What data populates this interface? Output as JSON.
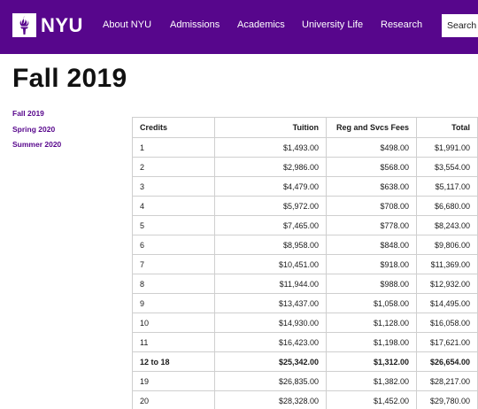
{
  "header": {
    "logo_text": "NYU",
    "nav": [
      "About NYU",
      "Admissions",
      "Academics",
      "University Life",
      "Research"
    ],
    "search_label": "Search",
    "brand_color": "#57068c"
  },
  "page_title": "Fall 2019",
  "side_nav": [
    "Fall 2019",
    "Spring 2020",
    "Summer 2020"
  ],
  "table": {
    "headers": [
      "Credits",
      "Tuition",
      "Reg and Svcs Fees",
      "Total"
    ],
    "rows": [
      [
        "1",
        "$1,493.00",
        "$498.00",
        "$1,991.00"
      ],
      [
        "2",
        "$2,986.00",
        "$568.00",
        "$3,554.00"
      ],
      [
        "3",
        "$4,479.00",
        "$638.00",
        "$5,117.00"
      ],
      [
        "4",
        "$5,972.00",
        "$708.00",
        "$6,680.00"
      ],
      [
        "5",
        "$7,465.00",
        "$778.00",
        "$8,243.00"
      ],
      [
        "6",
        "$8,958.00",
        "$848.00",
        "$9,806.00"
      ],
      [
        "7",
        "$10,451.00",
        "$918.00",
        "$11,369.00"
      ],
      [
        "8",
        "$11,944.00",
        "$988.00",
        "$12,932.00"
      ],
      [
        "9",
        "$13,437.00",
        "$1,058.00",
        "$14,495.00"
      ],
      [
        "10",
        "$14,930.00",
        "$1,128.00",
        "$16,058.00"
      ],
      [
        "11",
        "$16,423.00",
        "$1,198.00",
        "$17,621.00"
      ],
      [
        "12 to 18",
        "$25,342.00",
        "$1,312.00",
        "$26,654.00"
      ],
      [
        "19",
        "$26,835.00",
        "$1,382.00",
        "$28,217.00"
      ],
      [
        "20",
        "$28,328.00",
        "$1,452.00",
        "$29,780.00"
      ]
    ],
    "bold_row_label": "12 to 18"
  }
}
